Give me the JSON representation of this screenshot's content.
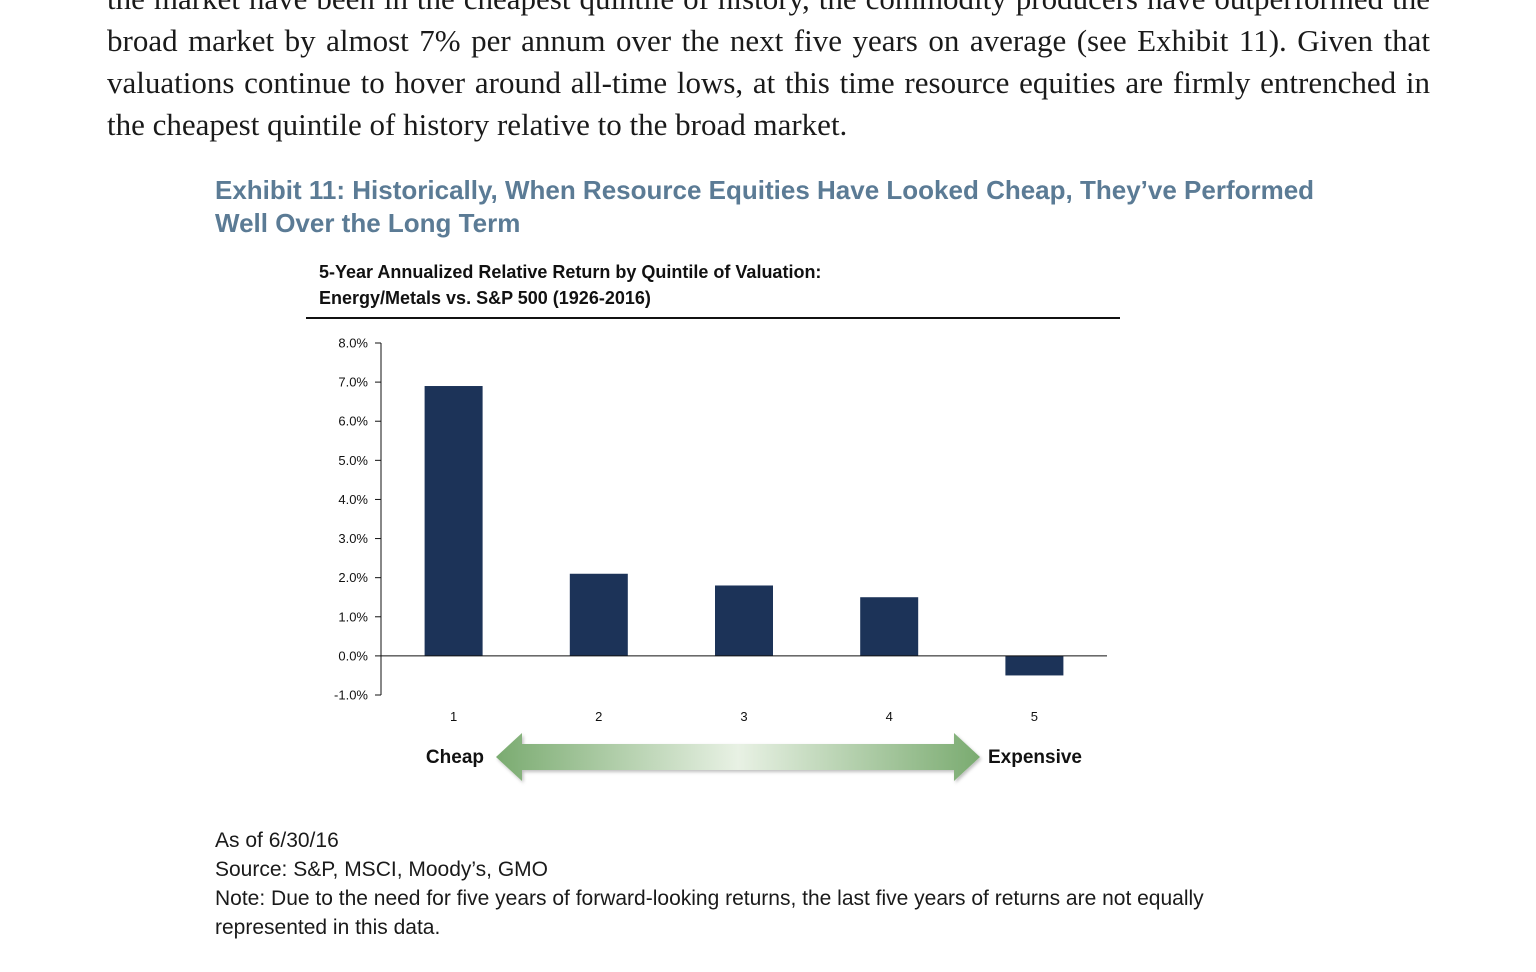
{
  "body_text": "the market have been in the cheapest quintile of history, the commodity producers have outperformed the broad market by almost 7% per annum over the next five years on average (see Exhibit 11). Given that valuations continue to hover around all-time lows, at this time resource equities are firmly entrenched in the cheapest quintile of history relative to the broad market.",
  "exhibit": {
    "title": "Exhibit 11: Historically, When Resource Equities Have Looked Cheap, They’ve Performed Well Over the Long Term"
  },
  "chart_data": {
    "type": "bar",
    "title_line1": "5-Year Annualized Relative Return by Quintile of Valuation:",
    "title_line2": "Energy/Metals vs. S&P 500 (1926-2016)",
    "categories": [
      "1",
      "2",
      "3",
      "4",
      "5"
    ],
    "values": [
      6.9,
      2.1,
      1.8,
      1.5,
      -0.5
    ],
    "ylim": [
      -1.0,
      8.0
    ],
    "yticks": [
      8.0,
      7.0,
      6.0,
      5.0,
      4.0,
      3.0,
      2.0,
      1.0,
      0.0,
      -1.0
    ],
    "ytick_labels": [
      "8.0%",
      "7.0%",
      "6.0%",
      "5.0%",
      "4.0%",
      "3.0%",
      "2.0%",
      "1.0%",
      "0.0%",
      "-1.0%"
    ],
    "bar_color": "#1c3358",
    "grid": false,
    "scale_left_label": "Cheap",
    "scale_right_label": "Expensive",
    "arrow_color": "#7aab70"
  },
  "notes": {
    "as_of": "As of 6/30/16",
    "source": "Source: S&P, MSCI, Moody’s, GMO",
    "note": "Note: Due to the need for five years of forward-looking returns, the last five years of returns are not equally represented in this data."
  }
}
